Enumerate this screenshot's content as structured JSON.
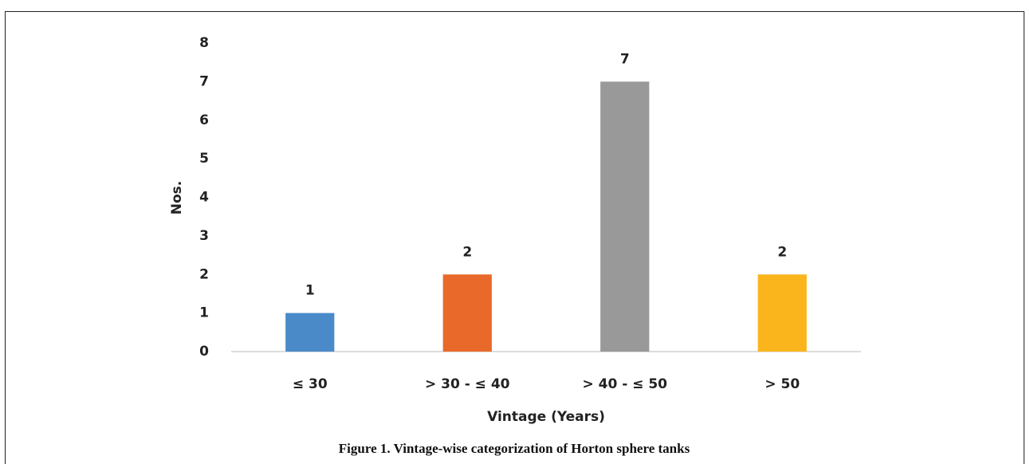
{
  "chart_data": {
    "type": "bar",
    "caption": "Figure 1. Vintage-wise categorization of Horton sphere tanks",
    "xlabel": "Vintage (Years)",
    "ylabel": "Nos.",
    "categories": [
      "≤ 30",
      "> 30 - ≤ 40",
      "> 40 - ≤ 50",
      "> 50"
    ],
    "values": [
      1,
      2,
      7,
      2
    ],
    "colors": [
      "#4a8ac9",
      "#e8692a",
      "#999999",
      "#f9b51b"
    ],
    "ylim": [
      0,
      8
    ],
    "yticks": [
      0,
      1,
      2,
      3,
      4,
      5,
      6,
      7,
      8
    ],
    "grid": false
  }
}
